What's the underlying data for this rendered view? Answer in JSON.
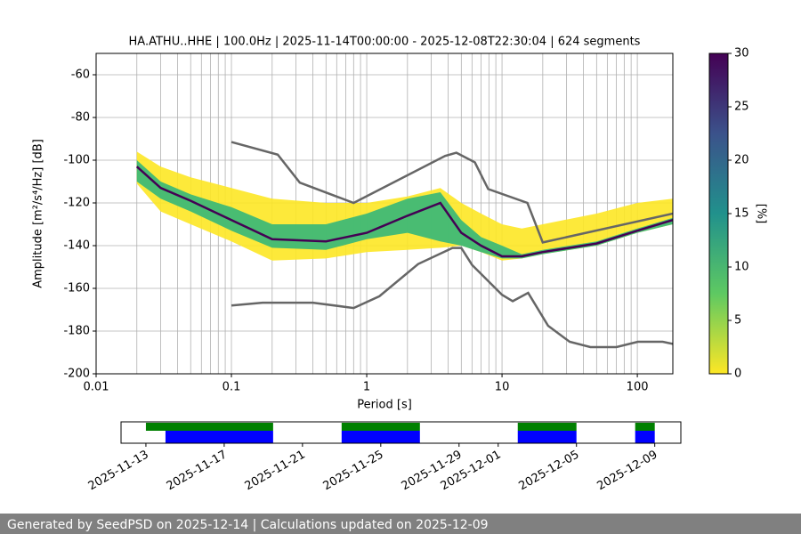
{
  "chart_data": [
    {
      "type": "ppsd",
      "title": "HA.ATHU..HHE | 100.0Hz | 2025-11-14T00:00:00 - 2025-12-08T22:30:04 | 624 segments",
      "xlabel": "Period [s]",
      "ylabel": "Amplitude [m²/s⁴/Hz] [dB]",
      "xscale": "log",
      "xlim": [
        0.01,
        183
      ],
      "ylim": [
        -200,
        -50
      ],
      "xticks": [
        0.01,
        0.1,
        1,
        10,
        100
      ],
      "yticks": [
        -200,
        -180,
        -160,
        -140,
        -120,
        -100,
        -80,
        -60
      ],
      "grid": true,
      "x": [
        0.02,
        0.03,
        0.05,
        0.1,
        0.2,
        0.5,
        1,
        2,
        3.5,
        5,
        7,
        10,
        14,
        20,
        50,
        100,
        183
      ],
      "bands": [
        {
          "color": "#fde725",
          "upper": [
            -96,
            -103,
            -108,
            -113,
            -118,
            -120,
            -120,
            -117,
            -113,
            -120,
            -125,
            -130,
            -132,
            -130,
            -125,
            -120,
            -118
          ],
          "lower": [
            -111,
            -124,
            -130,
            -138,
            -147,
            -146,
            -143,
            -142,
            -141,
            -140,
            -143,
            -147,
            -146,
            -144,
            -140,
            -134,
            -130
          ]
        },
        {
          "color": "#35b779",
          "upper": [
            -100,
            -110,
            -116,
            -122,
            -130,
            -130,
            -125,
            -118,
            -115,
            -128,
            -136,
            -140,
            -144,
            -142,
            -138,
            -132,
            -127
          ],
          "lower": [
            -110,
            -118,
            -124,
            -133,
            -141,
            -142,
            -137,
            -134,
            -138,
            -140,
            -143,
            -146,
            -146,
            -144,
            -140,
            -134,
            -130
          ]
        }
      ],
      "mode": {
        "color": "#440154",
        "values": [
          -103,
          -113,
          -119,
          -128,
          -137,
          -138,
          -134,
          -126,
          -120,
          -134,
          -140,
          -145,
          -145,
          -143,
          -139,
          -133,
          -128
        ]
      },
      "noise_models": [
        {
          "color": "#666666",
          "x": [
            0.1,
            0.22,
            0.32,
            0.8,
            3.8,
            4.6,
            6.3,
            7.9,
            15.4,
            20,
            183
          ],
          "values": [
            -91.5,
            -97.4,
            -110.5,
            -120,
            -98,
            -96.5,
            -101,
            -113.5,
            -120,
            -138.5,
            -125
          ]
        },
        {
          "color": "#666666",
          "x": [
            0.1,
            0.17,
            0.4,
            0.8,
            1.24,
            2.4,
            4.3,
            5,
            6,
            10,
            12,
            15.6,
            21.9,
            31.6,
            45,
            70,
            101,
            154,
            183
          ],
          "values": [
            -168,
            -166.7,
            -166.7,
            -169.2,
            -163.7,
            -148.6,
            -141.1,
            -141.1,
            -149,
            -163,
            -166,
            -162.1,
            -177.5,
            -185,
            -187.5,
            -187.5,
            -185,
            -185,
            -186
          ]
        }
      ],
      "colorbar": {
        "label": "[%]",
        "lim": [
          0,
          30
        ],
        "ticks": [
          0,
          5,
          10,
          15,
          20,
          25,
          30
        ]
      }
    },
    {
      "type": "timeline",
      "xlim": [
        "2025-11-11T17:30",
        "2025-12-10T08:00"
      ],
      "xticks": [
        "2025-11-13",
        "2025-11-17",
        "2025-11-21",
        "2025-11-25",
        "2025-11-29",
        "2025-12-01",
        "2025-12-05",
        "2025-12-09"
      ],
      "series": [
        {
          "color": "#008000",
          "spans": [
            [
              "2025-11-13",
              "2025-11-19T12:00"
            ],
            [
              "2025-11-23",
              "2025-11-27"
            ],
            [
              "2025-12-02",
              "2025-12-05"
            ],
            [
              "2025-12-08",
              "2025-12-09"
            ]
          ]
        },
        {
          "color": "#0000ff",
          "spans": [
            [
              "2025-11-14",
              "2025-11-19T12:00"
            ],
            [
              "2025-11-23",
              "2025-11-27"
            ],
            [
              "2025-12-02",
              "2025-12-05"
            ],
            [
              "2025-12-08",
              "2025-12-09"
            ]
          ]
        }
      ]
    }
  ],
  "footer": {
    "text": "Generated by SeedPSD on 2025-12-14 | Calculations updated on 2025-12-09"
  }
}
